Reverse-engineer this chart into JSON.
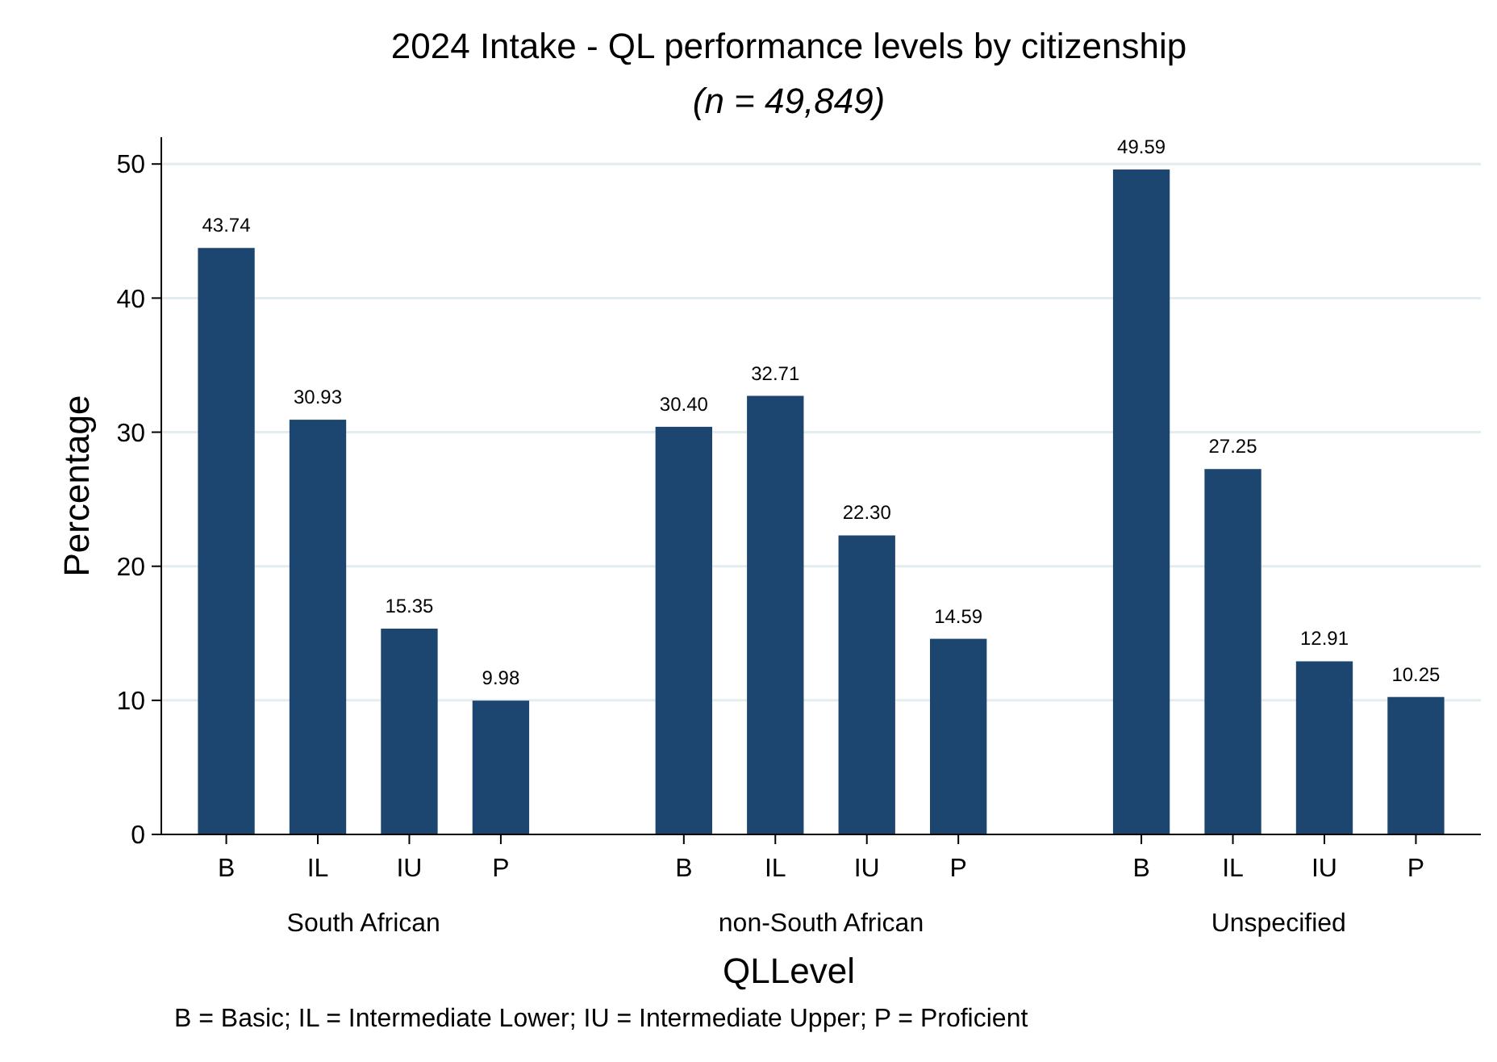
{
  "chart_data": {
    "type": "bar",
    "title": "2024 Intake - QL performance levels by citizenship",
    "subtitle": "(n = 49,849)",
    "xlabel": "QLLevel",
    "ylabel": "Percentage",
    "categories": [
      "B",
      "IL",
      "IU",
      "P",
      null,
      "B",
      "IL",
      "IU",
      "P",
      null,
      "B",
      "IL",
      "IU",
      "P"
    ],
    "values": [
      43.74,
      30.93,
      15.35,
      9.98,
      null,
      30.4,
      32.71,
      22.3,
      14.59,
      null,
      49.59,
      27.25,
      12.91,
      10.25
    ],
    "value_labels": [
      "43.74",
      "30.93",
      "15.35",
      "9.98",
      null,
      "30.40",
      "32.71",
      "22.30",
      "14.59",
      null,
      "49.59",
      "27.25",
      "12.91",
      "10.25"
    ],
    "color": "#1c4670",
    "ylim": [
      0,
      52
    ],
    "yticks": [
      0,
      10,
      20,
      30,
      40,
      50
    ],
    "grid": "y",
    "annotations": [
      "South African",
      "non-South African",
      "Unspecified",
      "B = Basic; IL = Intermediate Lower; IU = Intermediate Upper; P = Proficient"
    ]
  }
}
